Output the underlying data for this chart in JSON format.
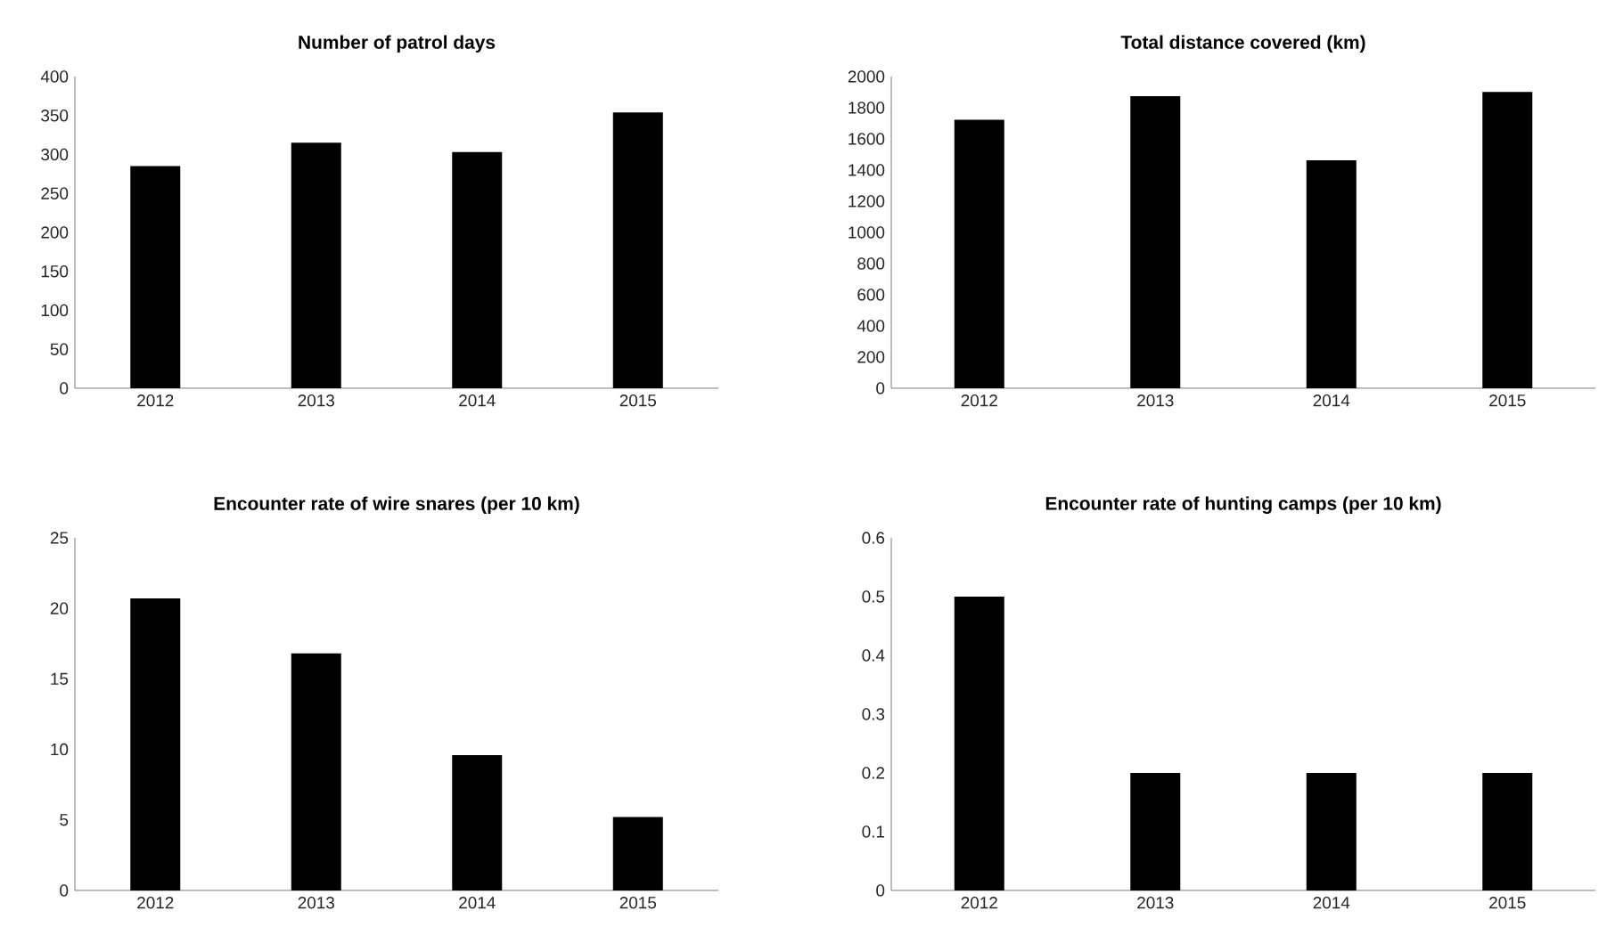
{
  "chart_data": [
    {
      "type": "bar",
      "title": "Number of patrol days",
      "categories": [
        "2012",
        "2013",
        "2014",
        "2015"
      ],
      "values": [
        285,
        315,
        303,
        354
      ],
      "color": "#000000",
      "ylim": [
        0,
        400
      ],
      "yticks": [
        0,
        50,
        100,
        150,
        200,
        250,
        300,
        350,
        400
      ]
    },
    {
      "type": "bar",
      "title": "Total distance covered (km)",
      "categories": [
        "2012",
        "2013",
        "2014",
        "2015"
      ],
      "values": [
        1722,
        1874,
        1463,
        1901
      ],
      "color": "#000000",
      "ylim": [
        0,
        2000
      ],
      "yticks": [
        0,
        200,
        400,
        600,
        800,
        1000,
        1200,
        1400,
        1600,
        1800,
        2000
      ]
    },
    {
      "type": "bar",
      "title": "Encounter rate of wire snares (per 10 km)",
      "categories": [
        "2012",
        "2013",
        "2014",
        "2015"
      ],
      "values": [
        20.7,
        16.8,
        9.6,
        5.2
      ],
      "color": "#000000",
      "ylim": [
        0,
        25
      ],
      "yticks": [
        0,
        5,
        10,
        15,
        20,
        25
      ]
    },
    {
      "type": "bar",
      "title": "Encounter rate of hunting camps (per 10 km)",
      "categories": [
        "2012",
        "2013",
        "2014",
        "2015"
      ],
      "values": [
        0.5,
        0.2,
        0.2,
        0.2
      ],
      "color": "#000000",
      "ylim": [
        0,
        0.6
      ],
      "yticks": [
        0,
        0.1,
        0.2,
        0.3,
        0.4,
        0.5,
        0.6
      ]
    }
  ]
}
